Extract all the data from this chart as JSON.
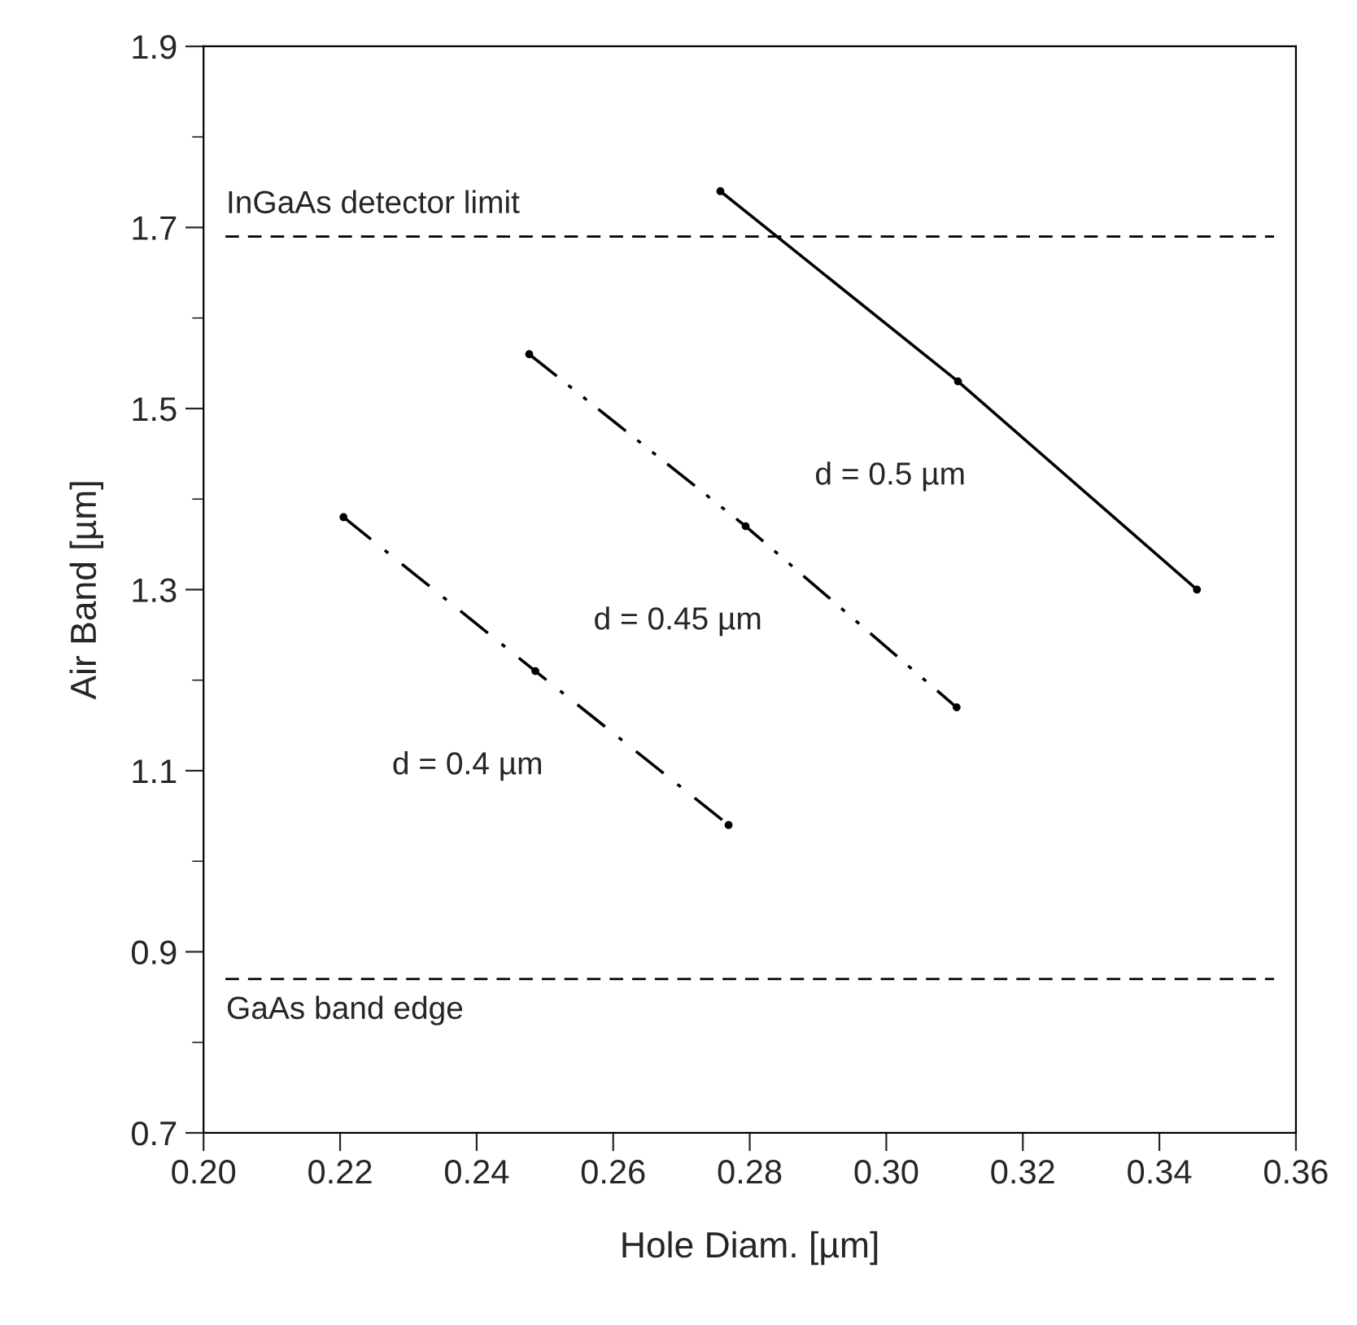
{
  "chart_data": {
    "type": "line",
    "xlabel": "Hole Diam. [µm]",
    "ylabel": "Air Band [µm]",
    "series": [
      {
        "name": "d = 0.5 µm",
        "color": "#000000",
        "line_style": "solid",
        "x": [
          0.2757,
          0.3105,
          0.3455
        ],
        "values": [
          1.74,
          1.53,
          1.3
        ]
      },
      {
        "name": "d = 0.45 µm",
        "color": "#000000",
        "line_style": "dashdotdot",
        "x": [
          0.2477,
          0.2794,
          0.3103
        ],
        "values": [
          1.56,
          1.37,
          1.17
        ]
      },
      {
        "name": "d = 0.4 µm",
        "color": "#000000",
        "line_style": "dashdot",
        "x": [
          0.2205,
          0.2486,
          0.2769
        ],
        "values": [
          1.38,
          1.21,
          1.04
        ]
      }
    ],
    "marker": "circle",
    "ref_lines": [
      {
        "axis": "y",
        "value": 1.69,
        "label": "InGaAs detector limit",
        "line_style": "dashed"
      },
      {
        "axis": "y",
        "value": 0.87,
        "label": "GaAs band edge",
        "line_style": "dashed"
      }
    ],
    "xlim": [
      0.2,
      0.36
    ],
    "xticks": [
      {
        "value": 0.2,
        "label": "0.20"
      },
      0.22,
      0.24,
      0.26,
      0.28,
      {
        "value": 0.3,
        "label": "0.30"
      },
      0.32,
      0.34,
      0.36
    ],
    "ylim": [
      0.7,
      1.9
    ],
    "yticks": [
      0.7,
      0.9,
      1.1,
      1.3,
      1.5,
      1.7,
      1.9
    ],
    "grid": false,
    "legend": false
  }
}
